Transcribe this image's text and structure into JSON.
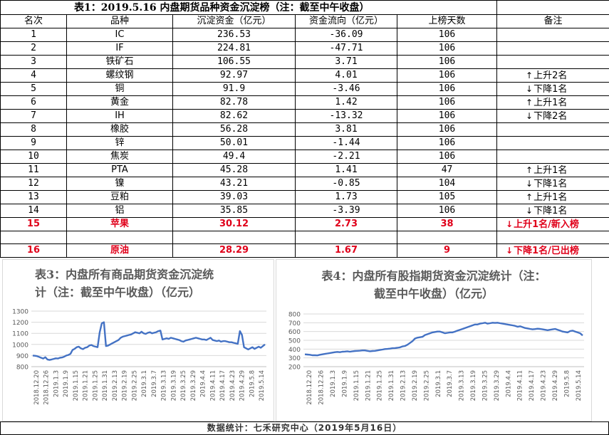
{
  "table": {
    "title": "表1：2019.5.16 内盘期货品种资金沉淀榜（注：截至中午收盘）",
    "headers": [
      "名次",
      "品种",
      "沉淀资金（亿元）",
      "资金流向（亿元）",
      "上榜天数",
      "备注"
    ],
    "rows": [
      {
        "rank": "1",
        "name": "IC",
        "capital": "236.53",
        "flow": "-36.09",
        "days": "106",
        "arrow": "",
        "note": ""
      },
      {
        "rank": "2",
        "name": "IF",
        "capital": "224.81",
        "flow": "-47.71",
        "days": "106",
        "arrow": "",
        "note": ""
      },
      {
        "rank": "3",
        "name": "铁矿石",
        "capital": "106.55",
        "flow": "3.71",
        "days": "106",
        "arrow": "",
        "note": ""
      },
      {
        "rank": "4",
        "name": "螺纹钢",
        "capital": "92.97",
        "flow": "4.01",
        "days": "106",
        "arrow": "↑",
        "note": "上升2名"
      },
      {
        "rank": "5",
        "name": "铜",
        "capital": "91.9",
        "flow": "-3.46",
        "days": "106",
        "arrow": "↓",
        "note": "下降1名"
      },
      {
        "rank": "6",
        "name": "黄金",
        "capital": "82.78",
        "flow": "1.42",
        "days": "106",
        "arrow": "↑",
        "note": "上升1名"
      },
      {
        "rank": "7",
        "name": "IH",
        "capital": "82.62",
        "flow": "-13.32",
        "days": "106",
        "arrow": "↓",
        "note": "下降2名"
      },
      {
        "rank": "8",
        "name": "橡胶",
        "capital": "56.28",
        "flow": "3.81",
        "days": "106",
        "arrow": "",
        "note": ""
      },
      {
        "rank": "9",
        "name": "锌",
        "capital": "50.01",
        "flow": "-1.44",
        "days": "106",
        "arrow": "",
        "note": ""
      },
      {
        "rank": "10",
        "name": "焦炭",
        "capital": "49.4",
        "flow": "-2.21",
        "days": "106",
        "arrow": "",
        "note": ""
      },
      {
        "rank": "11",
        "name": "PTA",
        "capital": "45.28",
        "flow": "1.41",
        "days": "47",
        "arrow": "↑",
        "note": "上升1名"
      },
      {
        "rank": "12",
        "name": "镍",
        "capital": "43.21",
        "flow": "-0.85",
        "days": "104",
        "arrow": "↓",
        "note": "下降1名"
      },
      {
        "rank": "13",
        "name": "豆粕",
        "capital": "39.03",
        "flow": "1.73",
        "days": "105",
        "arrow": "↑",
        "note": "上升1名"
      },
      {
        "rank": "14",
        "name": "铝",
        "capital": "35.85",
        "flow": "-3.39",
        "days": "106",
        "arrow": "↓",
        "note": "下降1名"
      }
    ],
    "highlight_rows": [
      {
        "rank": "15",
        "name": "苹果",
        "capital": "30.12",
        "flow": "2.73",
        "days": "38",
        "arrow": "↓",
        "note": "上升1名/新入榜"
      },
      {
        "rank": "16",
        "name": "原油",
        "capital": "28.29",
        "flow": "1.67",
        "days": "9",
        "arrow": "↓",
        "note": "下降1名/已出榜"
      }
    ]
  },
  "colors": {
    "line": "#4472c4",
    "highlight": "#e0001a",
    "grid": "#d9d9d9",
    "axis_text": "#595959"
  },
  "footer": "数据统计：七禾研究中心（2019年5月16日）",
  "chart_data": [
    {
      "type": "line",
      "title_lines": [
        "表3：内盘所有商品期货资金沉淀统",
        "计（注：截至中午收盘）（亿元）"
      ],
      "ylim": [
        800,
        1300
      ],
      "yticks": [
        800,
        900,
        1000,
        1100,
        1200,
        1300
      ],
      "grid": true,
      "legend": "none",
      "x_tick_labels": [
        "2018.12.20",
        "2018.12.26",
        "2019.1.3",
        "2019.1.9",
        "2019.1.15",
        "2019.1.21",
        "2019.1.25",
        "2019.1.31",
        "2019.2.13",
        "2019.2.19",
        "2019.2.25",
        "2019.3.1",
        "2019.3.7",
        "2019.3.13",
        "2019.3.19",
        "2019.3.25",
        "2019.3.29",
        "2019.4.4",
        "2019.4.11",
        "2019.4.17",
        "2019.4.23",
        "2019.4.29",
        "2019.5.8",
        "2019.5.14"
      ],
      "series": [
        {
          "values": [
            900,
            898,
            895,
            888,
            880,
            873,
            885,
            865,
            860,
            865,
            870,
            875,
            873,
            880,
            883,
            890,
            900,
            905,
            915,
            950,
            960,
            975,
            980,
            965,
            958,
            970,
            975,
            990,
            995,
            985,
            980,
            975,
            1110,
            1190,
            1200,
            985,
            990,
            1000,
            1010,
            1020,
            1030,
            1040,
            1060,
            1070,
            1075,
            1080,
            1085,
            1090,
            1100,
            1110,
            1105,
            1100,
            1115,
            1100,
            1095,
            1105,
            1110,
            1100,
            1105,
            1110,
            1120,
            1125,
            1045,
            1050,
            1055,
            1050,
            1060,
            1055,
            1050,
            1045,
            1040,
            1030,
            1025,
            1035,
            1040,
            1045,
            1050,
            1055,
            1060,
            1055,
            1050,
            1045,
            1045,
            1040,
            1050,
            1060,
            1040,
            1035,
            1030,
            1035,
            1025,
            1030,
            1030,
            1025,
            1020,
            1020,
            1015,
            1010,
            1005,
            1120,
            1085,
            975,
            965,
            955,
            965,
            975,
            960,
            970,
            980,
            970,
            985,
            1000
          ]
        }
      ]
    },
    {
      "type": "line",
      "title_lines": [
        "表4：内盘所有股指期货资金沉淀统计（注：",
        "截至中午收盘）（亿元）"
      ],
      "ylim": [
        200,
        800
      ],
      "yticks": [
        200,
        300,
        400,
        500,
        600,
        700,
        800
      ],
      "grid": true,
      "legend": "none",
      "x_tick_labels": [
        "2018.12.20",
        "2018.12.26",
        "2019.1.3",
        "2019.1.9",
        "2019.1.15",
        "2019.1.21",
        "2019.1.25",
        "2019.1.31",
        "2019.2.13",
        "2019.2.19",
        "2019.2.25",
        "2019.3.1",
        "2019.3.7",
        "2019.3.13",
        "2019.3.19",
        "2019.3.25",
        "2019.3.29",
        "2019.4.4",
        "2019.4.11",
        "2019.4.17",
        "2019.4.23",
        "2019.4.29",
        "2019.5.8",
        "2019.5.14"
      ],
      "series": [
        {
          "values": [
            340,
            338,
            335,
            330,
            330,
            328,
            335,
            340,
            345,
            350,
            355,
            360,
            365,
            368,
            365,
            370,
            372,
            375,
            370,
            375,
            378,
            380,
            382,
            385,
            385,
            380,
            375,
            378,
            380,
            385,
            390,
            395,
            400,
            402,
            405,
            410,
            412,
            415,
            420,
            430,
            435,
            450,
            470,
            490,
            520,
            530,
            535,
            540,
            560,
            570,
            580,
            590,
            595,
            600,
            600,
            590,
            580,
            585,
            590,
            590,
            600,
            610,
            620,
            630,
            640,
            650,
            660,
            670,
            680,
            680,
            690,
            695,
            700,
            690,
            695,
            700,
            698,
            700,
            695,
            690,
            685,
            680,
            675,
            670,
            665,
            655,
            660,
            650,
            640,
            635,
            630,
            625,
            628,
            632,
            630,
            625,
            620,
            615,
            620,
            625,
            630,
            620,
            610,
            600,
            595,
            590,
            605,
            610,
            600,
            590,
            580,
            555
          ]
        }
      ]
    }
  ]
}
